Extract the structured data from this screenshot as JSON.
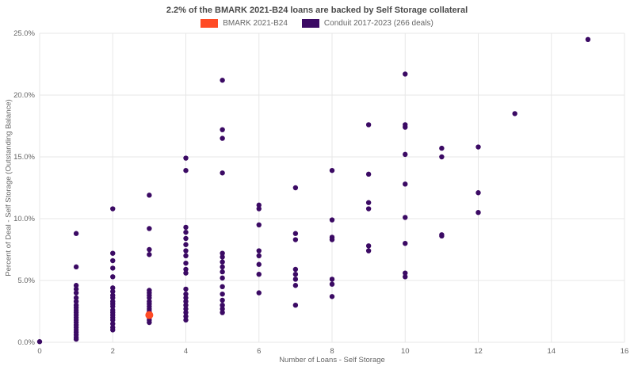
{
  "header": {
    "title": "2.2% of the BMARK 2021-B24 loans are backed by Self Storage collateral"
  },
  "legend": {
    "items": [
      {
        "label": "BMARK 2021-B24",
        "color": "#ff4b25"
      },
      {
        "label": "Conduit 2017-2023 (266 deals)",
        "color": "#3b0a64"
      }
    ]
  },
  "chart_data": {
    "type": "scatter",
    "title": "2.2% of the BMARK 2021-B24 loans are backed by Self Storage collateral",
    "xlabel": "Number of Loans - Self Storage",
    "ylabel": "Percent of Deal - Self Storage (Outstanding Balance)",
    "xlim": [
      0,
      16
    ],
    "ylim": [
      0,
      25
    ],
    "xticks": [
      0,
      2,
      4,
      6,
      8,
      10,
      12,
      14,
      16
    ],
    "yticks": [
      0,
      5,
      10,
      15,
      20,
      25
    ],
    "ytick_suffix": "%",
    "grid": true,
    "legend_position": "top",
    "series": [
      {
        "name": "BMARK 2021-B24",
        "color": "#ff4b25",
        "marker_radius": 5,
        "points": [
          [
            3,
            2.2
          ]
        ]
      },
      {
        "name": "Conduit 2017-2023 (266 deals)",
        "color": "#3b0a64",
        "marker_radius": 3.2,
        "points": [
          [
            0,
            0.05
          ],
          [
            1,
            8.8
          ],
          [
            1,
            6.1
          ],
          [
            1,
            4.6
          ],
          [
            1,
            4.3
          ],
          [
            1,
            4.0
          ],
          [
            1,
            3.6
          ],
          [
            1,
            3.3
          ],
          [
            1,
            3.0
          ],
          [
            1,
            2.8
          ],
          [
            1,
            2.6
          ],
          [
            1,
            2.4
          ],
          [
            1,
            2.2
          ],
          [
            1,
            2.0
          ],
          [
            1,
            1.8
          ],
          [
            1,
            1.6
          ],
          [
            1,
            1.4
          ],
          [
            1,
            1.2
          ],
          [
            1,
            1.0
          ],
          [
            1,
            0.8
          ],
          [
            1,
            0.6
          ],
          [
            1,
            0.4
          ],
          [
            1,
            0.25
          ],
          [
            2,
            10.8
          ],
          [
            2,
            7.2
          ],
          [
            2,
            6.6
          ],
          [
            2,
            6.0
          ],
          [
            2,
            5.3
          ],
          [
            2,
            4.4
          ],
          [
            2,
            4.1
          ],
          [
            2,
            3.8
          ],
          [
            2,
            3.6
          ],
          [
            2,
            3.3
          ],
          [
            2,
            3.1
          ],
          [
            2,
            2.9
          ],
          [
            2,
            2.6
          ],
          [
            2,
            2.4
          ],
          [
            2,
            2.2
          ],
          [
            2,
            2.0
          ],
          [
            2,
            1.8
          ],
          [
            2,
            1.5
          ],
          [
            2,
            1.2
          ],
          [
            2,
            1.0
          ],
          [
            3,
            11.9
          ],
          [
            3,
            9.2
          ],
          [
            3,
            7.5
          ],
          [
            3,
            7.1
          ],
          [
            3,
            4.2
          ],
          [
            3,
            4.0
          ],
          [
            3,
            3.8
          ],
          [
            3,
            3.6
          ],
          [
            3,
            3.3
          ],
          [
            3,
            3.1
          ],
          [
            3,
            2.9
          ],
          [
            3,
            2.7
          ],
          [
            3,
            2.5
          ],
          [
            3,
            2.3
          ],
          [
            3,
            2.0
          ],
          [
            3,
            1.8
          ],
          [
            3,
            1.6
          ],
          [
            4,
            14.9
          ],
          [
            4,
            13.9
          ],
          [
            4,
            9.3
          ],
          [
            4,
            8.9
          ],
          [
            4,
            8.4
          ],
          [
            4,
            7.9
          ],
          [
            4,
            7.4
          ],
          [
            4,
            7.0
          ],
          [
            4,
            6.4
          ],
          [
            4,
            5.9
          ],
          [
            4,
            5.6
          ],
          [
            4,
            4.3
          ],
          [
            4,
            3.9
          ],
          [
            4,
            3.6
          ],
          [
            4,
            3.3
          ],
          [
            4,
            3.0
          ],
          [
            4,
            2.7
          ],
          [
            4,
            2.4
          ],
          [
            4,
            2.1
          ],
          [
            4,
            1.8
          ],
          [
            5,
            21.2
          ],
          [
            5,
            17.2
          ],
          [
            5,
            16.5
          ],
          [
            5,
            13.7
          ],
          [
            5,
            7.2
          ],
          [
            5,
            6.9
          ],
          [
            5,
            6.5
          ],
          [
            5,
            6.1
          ],
          [
            5,
            5.7
          ],
          [
            5,
            5.2
          ],
          [
            5,
            4.5
          ],
          [
            5,
            3.9
          ],
          [
            5,
            3.4
          ],
          [
            5,
            3.0
          ],
          [
            5,
            2.7
          ],
          [
            5,
            2.4
          ],
          [
            6,
            11.1
          ],
          [
            6,
            10.8
          ],
          [
            6,
            9.5
          ],
          [
            6,
            7.4
          ],
          [
            6,
            7.0
          ],
          [
            6,
            6.3
          ],
          [
            6,
            5.5
          ],
          [
            6,
            4.0
          ],
          [
            7,
            12.5
          ],
          [
            7,
            8.8
          ],
          [
            7,
            8.3
          ],
          [
            7,
            5.9
          ],
          [
            7,
            5.5
          ],
          [
            7,
            5.1
          ],
          [
            7,
            4.6
          ],
          [
            7,
            3.0
          ],
          [
            8,
            13.9
          ],
          [
            8,
            9.9
          ],
          [
            8,
            8.5
          ],
          [
            8,
            8.3
          ],
          [
            8,
            5.1
          ],
          [
            8,
            4.7
          ],
          [
            8,
            3.7
          ],
          [
            9,
            17.6
          ],
          [
            9,
            13.6
          ],
          [
            9,
            11.3
          ],
          [
            9,
            10.8
          ],
          [
            9,
            7.8
          ],
          [
            9,
            7.4
          ],
          [
            10,
            21.7
          ],
          [
            10,
            17.6
          ],
          [
            10,
            17.4
          ],
          [
            10,
            15.2
          ],
          [
            10,
            12.8
          ],
          [
            10,
            10.1
          ],
          [
            10,
            8.0
          ],
          [
            10,
            5.6
          ],
          [
            10,
            5.3
          ],
          [
            11,
            15.7
          ],
          [
            11,
            15.0
          ],
          [
            11,
            8.7
          ],
          [
            11,
            8.6
          ],
          [
            12,
            15.8
          ],
          [
            12,
            12.1
          ],
          [
            12,
            10.5
          ],
          [
            13,
            18.5
          ],
          [
            15,
            24.5
          ]
        ]
      }
    ]
  }
}
